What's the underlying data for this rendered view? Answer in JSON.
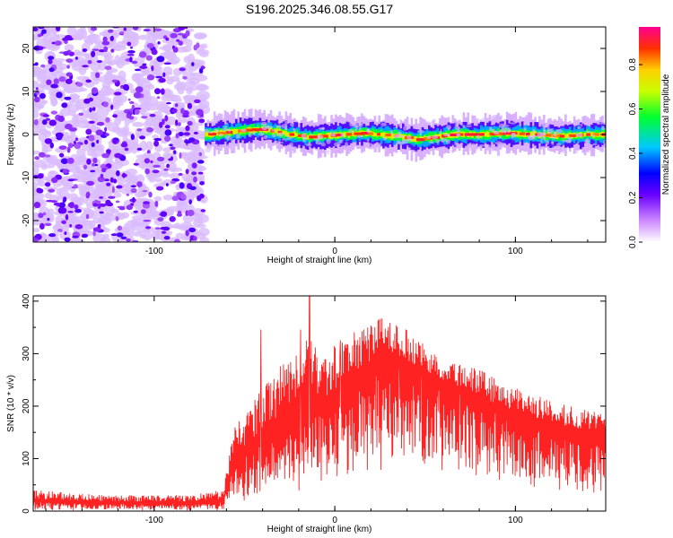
{
  "chart_data": [
    {
      "id": "spectrogram",
      "type": "heatmap",
      "title": "S196.2025.346.08.55.G17",
      "xlabel": "Height of straight line (km)",
      "ylabel": "Frequency (Hz)",
      "xlim": [
        -167,
        150
      ],
      "ylim": [
        -25,
        25
      ],
      "xticks": [
        -100,
        0,
        100
      ],
      "xtick_labels": [
        "-100",
        "0",
        "100"
      ],
      "yticks": [
        -20,
        -10,
        0,
        10,
        20
      ],
      "ytick_labels": [
        "-20",
        "-10",
        "0",
        "10",
        "20"
      ],
      "noise_region_km": [
        -167,
        -72
      ],
      "signal_region_km": [
        -72,
        150
      ],
      "signal_track": {
        "x": [
          -72,
          -60,
          -50,
          -42,
          -35,
          -25,
          -15,
          -5,
          5,
          15,
          25,
          35,
          45,
          55,
          65,
          80,
          95,
          110,
          125,
          140,
          150
        ],
        "frequency": [
          0,
          0.5,
          1,
          1.2,
          0.8,
          0,
          -0.6,
          -0.3,
          0,
          0.3,
          0,
          -0.4,
          -1.2,
          -0.6,
          0,
          0,
          0.3,
          0,
          -0.4,
          0,
          0
        ]
      },
      "colorbar": {
        "label": "Normalized spectral amplitude",
        "range": [
          0,
          0.97
        ],
        "ticks": [
          0.0,
          0.2,
          0.4,
          0.6,
          0.8
        ],
        "tick_labels": [
          "0.0",
          "0.2",
          "0.4",
          "0.6",
          "0.8"
        ]
      }
    },
    {
      "id": "snr",
      "type": "line",
      "xlabel": "Height of straight line (km)",
      "ylabel": "SNR (10 * v/v)",
      "xlim": [
        -167,
        150
      ],
      "ylim": [
        0,
        410
      ],
      "xticks": [
        -100,
        0,
        100
      ],
      "xtick_labels": [
        "-100",
        "0",
        "100"
      ],
      "yticks": [
        0,
        100,
        200,
        300,
        400
      ],
      "ytick_labels": [
        "0",
        "100",
        "200",
        "300",
        "400"
      ],
      "color": "#ff2222",
      "envelope": {
        "x": [
          -167,
          -130,
          -80,
          -62,
          -55,
          -45,
          -35,
          -25,
          -15,
          -5,
          5,
          15,
          25,
          35,
          45,
          55,
          65,
          75,
          85,
          95,
          105,
          115,
          125,
          135,
          150
        ],
        "upper": [
          40,
          30,
          30,
          40,
          170,
          210,
          260,
          300,
          330,
          300,
          330,
          350,
          370,
          360,
          330,
          300,
          290,
          280,
          260,
          240,
          230,
          215,
          205,
          195,
          185
        ],
        "lower": [
          5,
          5,
          5,
          5,
          50,
          60,
          80,
          100,
          130,
          130,
          160,
          200,
          220,
          230,
          220,
          210,
          190,
          175,
          160,
          150,
          140,
          130,
          120,
          115,
          100
        ]
      },
      "peaks": [
        {
          "x": -41,
          "y": 345
        },
        {
          "x": -14,
          "y": 410
        },
        {
          "x": -19,
          "y": 345
        },
        {
          "x": 3,
          "y": 325
        }
      ]
    }
  ]
}
